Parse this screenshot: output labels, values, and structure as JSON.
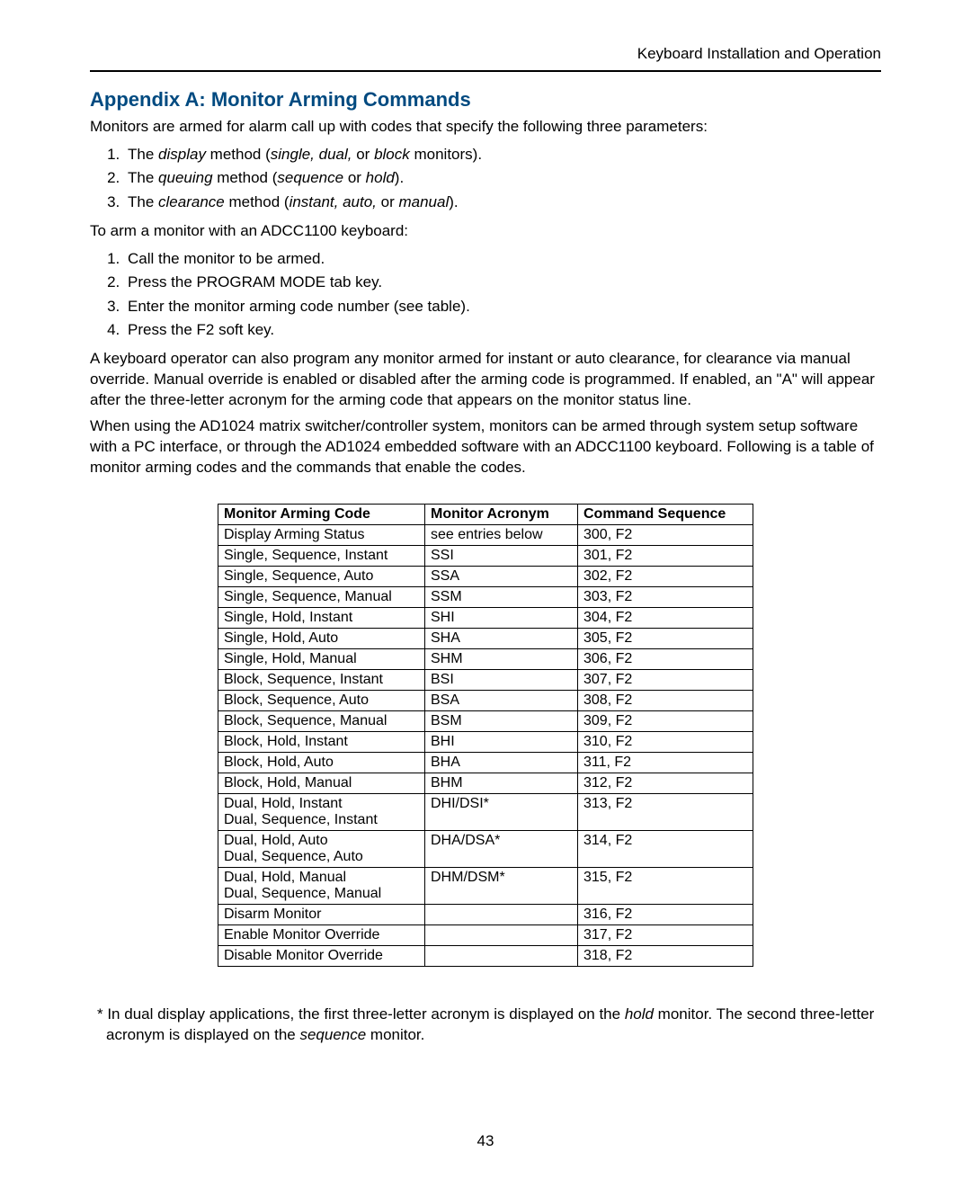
{
  "header": {
    "title": "Keyboard Installation and Operation"
  },
  "appendix": {
    "heading": "Appendix A: Monitor Arming Commands",
    "intro": "Monitors are armed for alarm call up with codes that specify the following three parameters:",
    "params": [
      {
        "pre": "The ",
        "term": "display",
        "mid": " method (",
        "opts": "single, dual,",
        "tail": " or ",
        "opt_last": "block",
        "end": " monitors)."
      },
      {
        "pre": "The ",
        "term": "queuing",
        "mid": " method (",
        "opts": "sequence",
        "tail": " or ",
        "opt_last": "hold",
        "end": ")."
      },
      {
        "pre": "The ",
        "term": "clearance",
        "mid": " method (",
        "opts": "instant, auto,",
        "tail": " or ",
        "opt_last": "manual",
        "end": ")."
      }
    ],
    "arm_intro": "To arm a monitor with an ADCC1100 keyboard:",
    "steps": [
      "Call the monitor to be armed.",
      "Press the PROGRAM MODE tab key.",
      "Enter the monitor arming code number (see table).",
      "Press the F2 soft key."
    ],
    "para1": "A keyboard operator can also program any monitor armed for instant or auto clearance, for clearance via manual override. Manual override is enabled or disabled after the arming code is programmed. If enabled, an \"A\" will appear after the three-letter acronym for the arming code that appears on the monitor status line.",
    "para2": "When using the AD1024 matrix switcher/controller system, monitors can be armed through system setup software with a PC interface, or through the AD1024 embedded software with an ADCC1100 keyboard. Following is a table of monitor arming codes and the commands that enable the codes."
  },
  "table": {
    "headers": [
      "Monitor Arming Code",
      "Monitor Acronym",
      "Command Sequence"
    ],
    "rows": [
      [
        "Display Arming Status",
        "see entries below",
        "300, F2"
      ],
      [
        "Single, Sequence, Instant",
        "SSI",
        "301, F2"
      ],
      [
        "Single, Sequence, Auto",
        "SSA",
        "302, F2"
      ],
      [
        "Single, Sequence, Manual",
        "SSM",
        "303, F2"
      ],
      [
        "Single, Hold, Instant",
        "SHI",
        "304, F2"
      ],
      [
        "Single, Hold, Auto",
        "SHA",
        "305, F2"
      ],
      [
        "Single, Hold, Manual",
        "SHM",
        "306, F2"
      ],
      [
        "Block, Sequence, Instant",
        "BSI",
        "307, F2"
      ],
      [
        "Block, Sequence, Auto",
        "BSA",
        "308, F2"
      ],
      [
        "Block, Sequence, Manual",
        "BSM",
        "309, F2"
      ],
      [
        "Block, Hold, Instant",
        "BHI",
        "310, F2"
      ],
      [
        "Block, Hold, Auto",
        "BHA",
        "311, F2"
      ],
      [
        "Block, Hold, Manual",
        "BHM",
        "312, F2"
      ],
      [
        "Dual, Hold, Instant\nDual, Sequence, Instant",
        "DHI/DSI*",
        "313, F2"
      ],
      [
        "Dual, Hold, Auto\nDual, Sequence, Auto",
        "DHA/DSA*",
        "314, F2"
      ],
      [
        "Dual, Hold, Manual\nDual, Sequence, Manual",
        "DHM/DSM*",
        "315, F2"
      ],
      [
        "Disarm Monitor",
        "",
        "316, F2"
      ],
      [
        "Enable Monitor Override",
        "",
        "317, F2"
      ],
      [
        "Disable Monitor Override",
        "",
        "318, F2"
      ]
    ]
  },
  "footnote": {
    "pre": "* In dual display applications, the first three-letter acronym is displayed on the ",
    "hold": "hold",
    "mid": " monitor. The second three-letter acronym is displayed on the ",
    "seq": "sequence",
    "end": " monitor."
  },
  "page_number": "43",
  "colors": {
    "heading": "#004a80",
    "text": "#000000",
    "border": "#000000",
    "background": "#ffffff"
  },
  "typography": {
    "body_fontsize_pt": 12,
    "heading_fontsize_pt": 16,
    "font_family": "Arial"
  }
}
